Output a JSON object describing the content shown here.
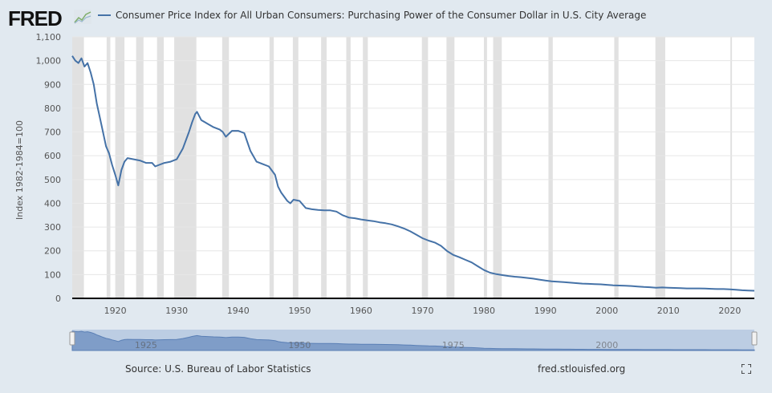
{
  "header": {
    "logo": "FRED",
    "legend_label": "Consumer Price Index for All Urban Consumers: Purchasing Power of the Consumer Dollar in U.S. City Average"
  },
  "footer": {
    "source": "Source: U.S. Bureau of Labor Statistics",
    "site": "fred.stlouisfed.org",
    "fullscreen_icon": "expand-icon"
  },
  "navigator": {
    "labels": [
      "1925",
      "1950",
      "1975",
      "2000"
    ]
  },
  "colors": {
    "series": "#4572a7",
    "recession": "#e1e1e1",
    "background": "#e1e9f0"
  },
  "chart_data": {
    "type": "line",
    "title": "",
    "xlabel": "",
    "ylabel": "Index 1982-1984=100",
    "xlim": [
      1913,
      2024
    ],
    "ylim": [
      0,
      1100
    ],
    "grid": true,
    "legend": "top-left",
    "yticks": [
      0,
      100,
      200,
      300,
      400,
      500,
      600,
      700,
      800,
      900,
      1000,
      1100
    ],
    "ytick_labels": [
      "0",
      "100",
      "200",
      "300",
      "400",
      "500",
      "600",
      "700",
      "800",
      "900",
      "1,000",
      "1,100"
    ],
    "xticks": [
      1920,
      1930,
      1940,
      1950,
      1960,
      1970,
      1980,
      1990,
      2000,
      2010,
      2020
    ],
    "recessions": [
      [
        1913,
        1914.9
      ],
      [
        1918.6,
        1919.2
      ],
      [
        1920,
        1921.5
      ],
      [
        1923.4,
        1924.6
      ],
      [
        1926.8,
        1927.9
      ],
      [
        1929.6,
        1933.2
      ],
      [
        1937.4,
        1938.5
      ],
      [
        1945.1,
        1945.8
      ],
      [
        1948.9,
        1949.8
      ],
      [
        1953.5,
        1954.4
      ],
      [
        1957.6,
        1958.3
      ],
      [
        1960.3,
        1961.1
      ],
      [
        1969.9,
        1970.9
      ],
      [
        1973.9,
        1975.2
      ],
      [
        1980,
        1980.5
      ],
      [
        1981.5,
        1982.9
      ],
      [
        1990.5,
        1991.2
      ],
      [
        2001.2,
        2001.9
      ],
      [
        2007.9,
        2009.5
      ],
      [
        2020.1,
        2020.3
      ]
    ],
    "series": [
      {
        "name": "Consumer Price Index for All Urban Consumers: Purchasing Power of the Consumer Dollar in U.S. City Average",
        "x": [
          1913,
          1913.5,
          1914,
          1914.5,
          1915,
          1915.5,
          1916,
          1916.5,
          1917,
          1917.5,
          1918,
          1918.5,
          1919,
          1919.5,
          1920,
          1920.5,
          1921,
          1921.5,
          1922,
          1923,
          1924,
          1925,
          1926,
          1926.5,
          1927,
          1928,
          1929,
          1930,
          1931,
          1932,
          1932.5,
          1933,
          1933.3,
          1934,
          1935,
          1936,
          1937,
          1937.5,
          1938,
          1939,
          1940,
          1941,
          1942,
          1943,
          1944,
          1945,
          1946,
          1946.5,
          1947,
          1948,
          1948.5,
          1949,
          1950,
          1951,
          1952,
          1953,
          1954,
          1955,
          1956,
          1957,
          1958,
          1959,
          1960,
          1961,
          1962,
          1963,
          1964,
          1965,
          1966,
          1967,
          1968,
          1969,
          1970,
          1971,
          1972,
          1973,
          1974,
          1975,
          1976,
          1977,
          1978,
          1979,
          1980,
          1981,
          1982,
          1983,
          1984,
          1985,
          1986,
          1987,
          1988,
          1989,
          1990,
          1991,
          1992,
          1993,
          1994,
          1995,
          1996,
          1997,
          1998,
          1999,
          2000,
          2001,
          2002,
          2003,
          2004,
          2005,
          2006,
          2007,
          2008,
          2009,
          2010,
          2011,
          2012,
          2013,
          2014,
          2015,
          2016,
          2017,
          2018,
          2019,
          2020,
          2021,
          2022,
          2023,
          2024
        ],
        "values": [
          1020,
          1000,
          990,
          1010,
          975,
          990,
          950,
          900,
          820,
          760,
          700,
          640,
          610,
          560,
          520,
          475,
          540,
          575,
          590,
          585,
          580,
          570,
          570,
          555,
          560,
          570,
          575,
          585,
          630,
          700,
          740,
          775,
          785,
          750,
          735,
          720,
          710,
          700,
          680,
          705,
          705,
          695,
          620,
          575,
          565,
          555,
          520,
          470,
          445,
          410,
          400,
          415,
          410,
          380,
          375,
          372,
          370,
          370,
          365,
          350,
          340,
          337,
          332,
          328,
          325,
          320,
          316,
          311,
          303,
          294,
          282,
          268,
          253,
          243,
          235,
          221,
          199,
          183,
          173,
          162,
          151,
          135,
          119,
          108,
          102,
          98,
          94,
          91,
          89,
          86,
          83,
          79,
          75,
          72,
          70,
          68,
          66,
          64,
          62,
          61,
          60,
          59,
          57,
          55,
          54,
          53,
          52,
          50,
          48,
          47,
          45,
          46,
          45,
          44,
          43,
          42,
          42,
          42,
          41,
          40,
          39,
          39,
          38,
          36,
          34,
          33,
          32
        ]
      }
    ]
  }
}
